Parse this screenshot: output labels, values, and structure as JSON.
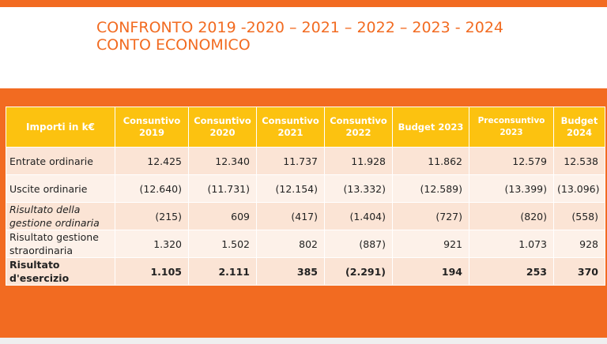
{
  "title": {
    "line1": "CONFRONTO 2019 -2020 – 2021 – 2022 – 2023 - 2024",
    "line2": "CONTO ECONOMICO"
  },
  "colors": {
    "accent": "#f26b21",
    "header_bg": "#fcc210",
    "row_odd": "#fbe4d5",
    "row_even": "#fdf1e9"
  },
  "table": {
    "headers": [
      [
        "Importi in k€"
      ],
      [
        "Consuntivo",
        "2019"
      ],
      [
        "Consuntivo",
        "2020"
      ],
      [
        "Consuntivo",
        "2021"
      ],
      [
        "Consuntivo",
        "2022"
      ],
      [
        "Budget 2023"
      ],
      [
        "Preconsuntivo",
        "2023"
      ],
      [
        "Budget",
        "2024"
      ]
    ],
    "rows": [
      {
        "label": [
          "Entrate ordinarie"
        ],
        "values": [
          "12.425",
          "12.340",
          "11.737",
          "11.928",
          "11.862",
          "12.579",
          "12.538"
        ]
      },
      {
        "label": [
          "Uscite ordinarie"
        ],
        "values": [
          "(12.640)",
          "(11.731)",
          "(12.154)",
          "(13.332)",
          "(12.589)",
          "(13.399)",
          "(13.096)"
        ]
      },
      {
        "label": [
          "Risultato della",
          "gestione ordinaria"
        ],
        "values": [
          "(215)",
          "609",
          "(417)",
          "(1.404)",
          "(727)",
          "(820)",
          "(558)"
        ]
      },
      {
        "label": [
          "Risultato gestione",
          "straordinaria"
        ],
        "values": [
          "1.320",
          "1.502",
          "802",
          "(887)",
          "921",
          "1.073",
          "928"
        ]
      },
      {
        "label": [
          "Risultato",
          "d'esercizio"
        ],
        "values": [
          "1.105",
          "2.111",
          "385",
          "(2.291)",
          "194",
          "253",
          "370"
        ]
      }
    ]
  }
}
